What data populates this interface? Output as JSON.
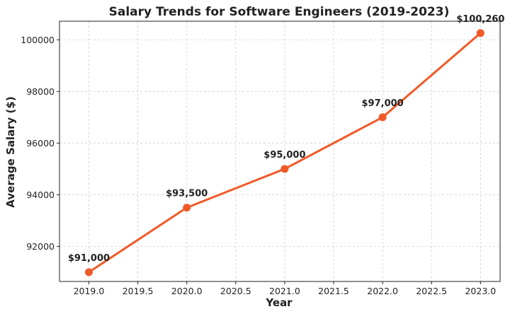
{
  "chart_data": {
    "type": "line",
    "title": "Salary Trends for Software Engineers (2019-2023)",
    "xlabel": "Year",
    "ylabel": "Average Salary ($)",
    "x": [
      2019,
      2020,
      2021,
      2022,
      2023
    ],
    "series": [
      {
        "values": [
          91000,
          93500,
          95000,
          97000,
          100260
        ]
      }
    ],
    "data_labels": [
      "$91,000",
      "$93,500",
      "$95,000",
      "$97,000",
      "$100,260"
    ],
    "xlim": [
      2018.7,
      2023.2
    ],
    "ylim": [
      90640,
      100720
    ],
    "x_ticks": [
      2019.0,
      2019.5,
      2020.0,
      2020.5,
      2021.0,
      2021.5,
      2022.0,
      2022.5,
      2023.0
    ],
    "x_tick_labels": [
      "2019.0",
      "2019.5",
      "2020.0",
      "2020.5",
      "2021.0",
      "2021.5",
      "2022.0",
      "2022.5",
      "2023.0"
    ],
    "y_ticks": [
      92000,
      94000,
      96000,
      98000,
      100000
    ],
    "y_tick_labels": [
      "92000",
      "94000",
      "96000",
      "98000",
      "100000"
    ],
    "grid": true,
    "line_color": "#f05a28",
    "marker_color": "#f05a28"
  }
}
